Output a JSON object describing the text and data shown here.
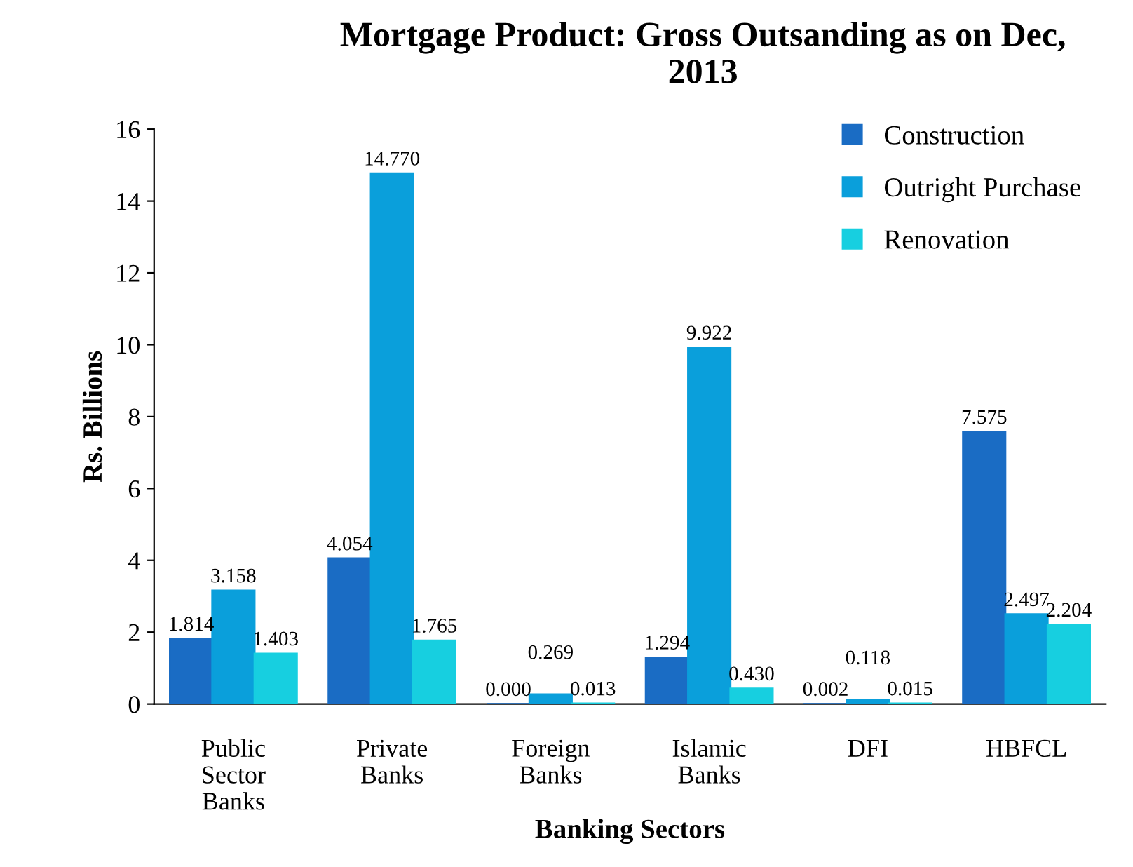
{
  "chart_data": {
    "type": "bar",
    "title": "Mortgage Product: Gross Outsanding as on Dec, 2013",
    "xlabel": "Banking Sectors",
    "ylabel": "Rs. Billions",
    "categories": [
      "Public\nSector\nBanks",
      "Private\nBanks",
      "Foreign\nBanks",
      "Islamic\nBanks",
      "DFI",
      "HBFCL"
    ],
    "series": [
      {
        "name": "Construction",
        "color": "#1a6cc4",
        "values": [
          1.814,
          4.054,
          0.0,
          1.294,
          0.002,
          7.575
        ],
        "value_labels": [
          "1.814",
          "4.054",
          "0.000",
          "1.294",
          "0.002",
          "7.575"
        ]
      },
      {
        "name": "Outright Purchase",
        "color": "#0a9fdb",
        "values": [
          3.158,
          14.77,
          0.269,
          9.922,
          0.118,
          2.497
        ],
        "value_labels": [
          "3.158",
          "14.770",
          "0.269",
          "9.922",
          "0.118",
          "2.497"
        ]
      },
      {
        "name": "Renovation",
        "color": "#17cfe0",
        "values": [
          1.403,
          1.765,
          0.013,
          0.43,
          0.015,
          2.204
        ],
        "value_labels": [
          "1.403",
          "1.765",
          "0.013",
          "0.430",
          "0.015",
          "2.204"
        ]
      }
    ],
    "ylim": [
      0,
      16
    ],
    "yticks": [
      0,
      2,
      4,
      6,
      8,
      10,
      12,
      14,
      16
    ],
    "grid": false,
    "legend": "top right"
  }
}
